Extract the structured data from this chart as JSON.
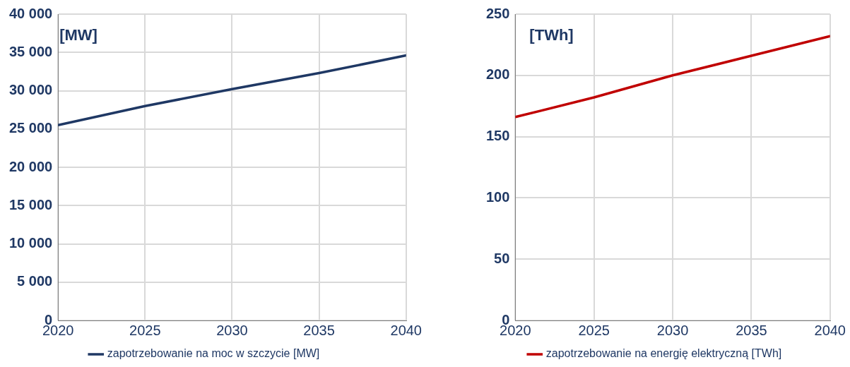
{
  "chart_data": [
    {
      "type": "line",
      "x": [
        2020,
        2025,
        2030,
        2035,
        2040
      ],
      "series": [
        {
          "name": "zapotrzebowanie na moc w szczycie [MW]",
          "color": "#1f3864",
          "values": [
            25500,
            28000,
            30200,
            32300,
            34600
          ]
        }
      ],
      "xlim": [
        2020,
        2040
      ],
      "xticks": [
        2020,
        2025,
        2030,
        2035,
        2040
      ],
      "ylim": [
        0,
        40000
      ],
      "yticks": [
        {
          "value": 0,
          "label": "0"
        },
        {
          "value": 5000,
          "label": "5 000"
        },
        {
          "value": 10000,
          "label": "10 000"
        },
        {
          "value": 15000,
          "label": "15 000"
        },
        {
          "value": 20000,
          "label": "20 000"
        },
        {
          "value": 25000,
          "label": "25 000"
        },
        {
          "value": 30000,
          "label": "30 000"
        },
        {
          "value": 35000,
          "label": "35 000"
        },
        {
          "value": 40000,
          "label": "40 000"
        }
      ],
      "annotations": [
        "[MW]"
      ],
      "grid": true,
      "legend": "bottom",
      "marker": "none",
      "line_style": "solid"
    },
    {
      "type": "line",
      "x": [
        2020,
        2025,
        2030,
        2035,
        2040
      ],
      "series": [
        {
          "name": "zapotrzebowanie na energię elektryczną [TWh]",
          "color": "#c00000",
          "values": [
            166,
            182,
            200,
            216,
            232
          ]
        }
      ],
      "xlim": [
        2020,
        2040
      ],
      "xticks": [
        2020,
        2025,
        2030,
        2035,
        2040
      ],
      "ylim": [
        0,
        250
      ],
      "yticks": [
        0,
        50,
        100,
        150,
        200,
        250
      ],
      "annotations": [
        "[TWh]"
      ],
      "grid": true,
      "legend": "bottom",
      "marker": "none",
      "line_style": "solid"
    }
  ]
}
